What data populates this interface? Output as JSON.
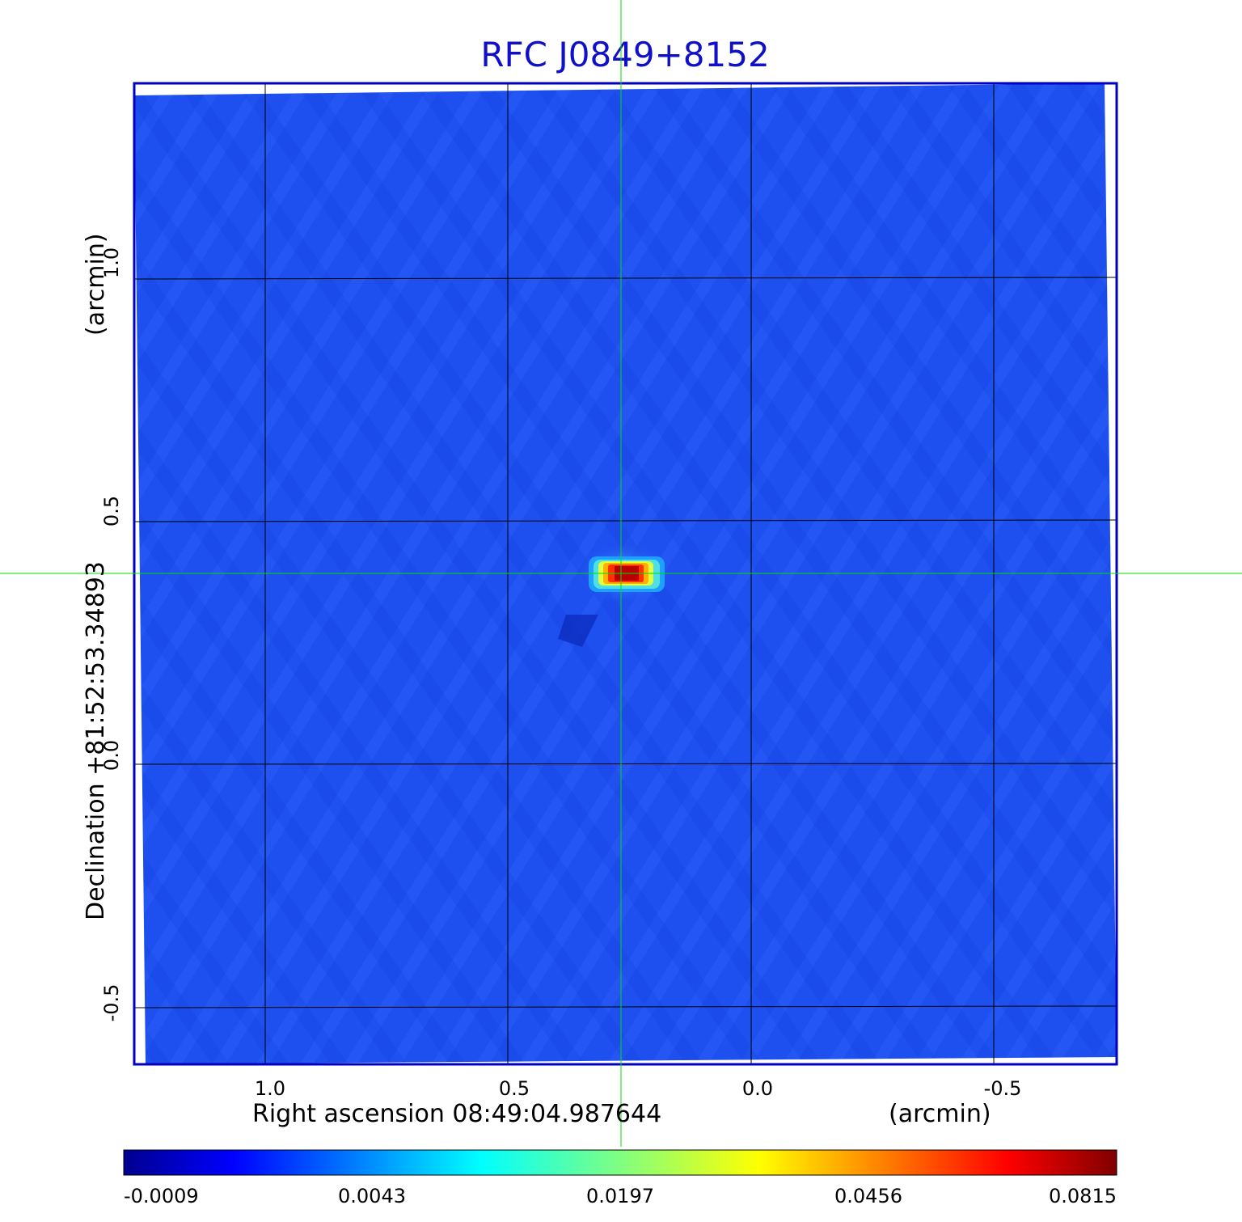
{
  "title": "RFC J0849+8152",
  "x_axis": {
    "label": "Right ascension  08:49:04.987644",
    "unit": "(arcmin)",
    "ticks": [
      "1.0",
      "0.5",
      "0.0",
      "-0.5"
    ]
  },
  "y_axis": {
    "label": "Declination  +81:52:53.34893",
    "unit": "(arcmin)",
    "ticks": [
      "1.0",
      "0.5",
      "0.0",
      "-0.5"
    ]
  },
  "colorbar": {
    "ticks": [
      "-0.0009",
      "0.0043",
      "0.0197",
      "0.0456",
      "0.0815"
    ],
    "colormap": "jet"
  },
  "colors": {
    "title": "#1010c8",
    "frame": "#0000c0",
    "crosshair": "#00e000",
    "background_field": "#1e50f0"
  }
}
